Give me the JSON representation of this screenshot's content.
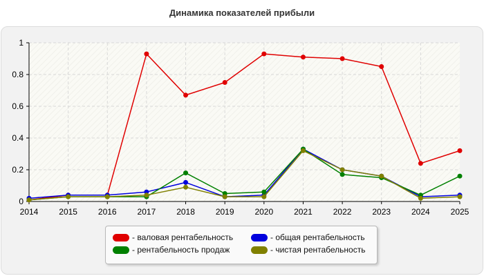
{
  "chart_data": {
    "type": "line",
    "title": "Динамика показателей прибыли",
    "x": [
      "2014",
      "2015",
      "2016",
      "2017",
      "2018",
      "2019",
      "2020",
      "2021",
      "2022",
      "2023",
      "2024",
      "2025"
    ],
    "ylim": [
      0,
      1
    ],
    "yticks": [
      "0",
      "0.2",
      "0.4",
      "0.6",
      "0.8",
      "1"
    ],
    "grid": true,
    "legend_position": "bottom-center",
    "series": [
      {
        "name": "- валовая рентабельность",
        "color": "#e00000",
        "values": [
          0.01,
          0.04,
          0.04,
          0.93,
          0.67,
          0.75,
          0.93,
          0.91,
          0.9,
          0.85,
          0.24,
          0.32
        ]
      },
      {
        "name": "- общая рентабельность",
        "color": "#0000dd",
        "values": [
          0.02,
          0.04,
          0.04,
          0.06,
          0.12,
          0.03,
          0.04,
          0.33,
          0.2,
          0.16,
          0.03,
          0.04
        ]
      },
      {
        "name": "- рентабельность продаж",
        "color": "#008000",
        "values": [
          0.01,
          0.03,
          0.03,
          0.03,
          0.18,
          0.05,
          0.06,
          0.33,
          0.17,
          0.15,
          0.04,
          0.16
        ]
      },
      {
        "name": "- чистая рентабельность",
        "color": "#808000",
        "values": [
          0.01,
          0.03,
          0.03,
          0.04,
          0.09,
          0.03,
          0.03,
          0.32,
          0.2,
          0.16,
          0.02,
          0.03
        ]
      }
    ]
  }
}
